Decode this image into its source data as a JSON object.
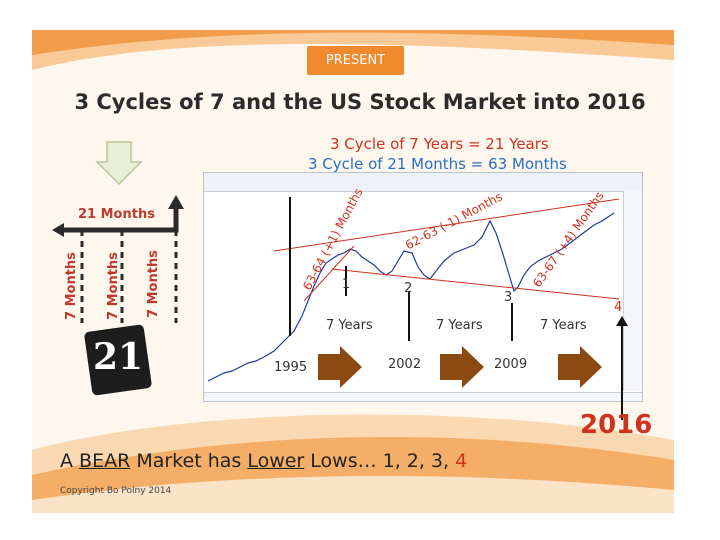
{
  "header": {
    "button_label": "PRESENT"
  },
  "title": "3 Cycles of 7 and the US Stock Market into 2016",
  "subtitles": {
    "years": "3 Cycle of 7 Years = 21 Years",
    "months": "3 Cycle of 21 Months = 63 Months"
  },
  "left_panel": {
    "months_label": "21 Months",
    "vertical_labels": [
      "7 Months",
      "7 Months",
      "7 Months"
    ],
    "card_number": "21"
  },
  "chart": {
    "low_labels": [
      "1",
      "2",
      "3",
      "4"
    ],
    "cycle_label": "7 Years",
    "year_labels": [
      "1995",
      "2002",
      "2009"
    ],
    "angled_labels": [
      "63-64 (+1) Months",
      "62-63 (-1) Months",
      "63-67 (+4) Months"
    ]
  },
  "year_highlight": "2016",
  "footer": {
    "text_prefix": "A ",
    "text_bear": "BEAR",
    "text_middle": " Market has ",
    "text_lower": "Lower",
    "text_suffix": " Lows… 1, 2, 3, ",
    "text_last": "4",
    "copyright": "Copyright Bo Polny 2014"
  },
  "colors": {
    "accent": "#f08a2c",
    "red": "#d0321e",
    "blue": "#2a6fc7",
    "arrow_brown": "#8a4a12"
  }
}
